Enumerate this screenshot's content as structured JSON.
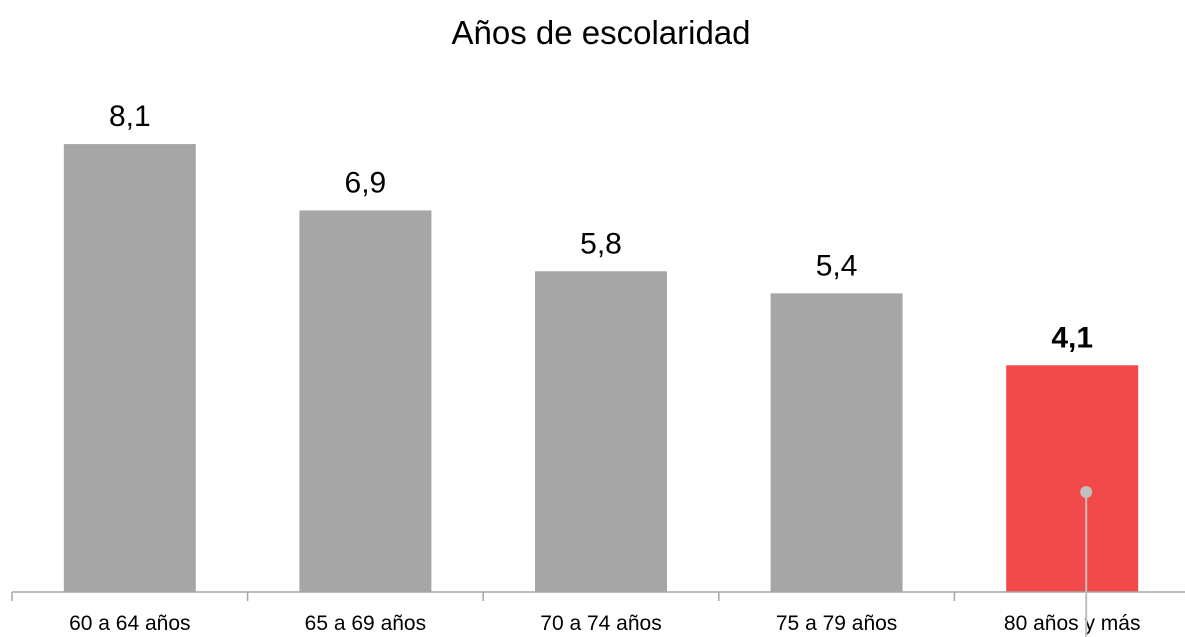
{
  "chart_data": {
    "type": "bar",
    "title": "Años de escolaridad",
    "xlabel": "",
    "ylabel": "",
    "categories": [
      "60 a 64 años",
      "65 a 69 años",
      "70 a 74 años",
      "75 a 79 años",
      "80 años y más"
    ],
    "values": [
      8.1,
      6.9,
      5.8,
      5.4,
      4.1
    ],
    "value_labels": [
      "8,1",
      "6,9",
      "5,8",
      "5,4",
      "4,1"
    ],
    "highlight_index": 4,
    "ylim": [
      0,
      10
    ],
    "grid": false,
    "legend": "none",
    "colors": {
      "bar": "#a6a6a6",
      "highlight_bar": "#f24a4a",
      "highlight_label": "#ff0000",
      "axis": "#a6a6a6",
      "marker": "#bfbfbf"
    }
  }
}
